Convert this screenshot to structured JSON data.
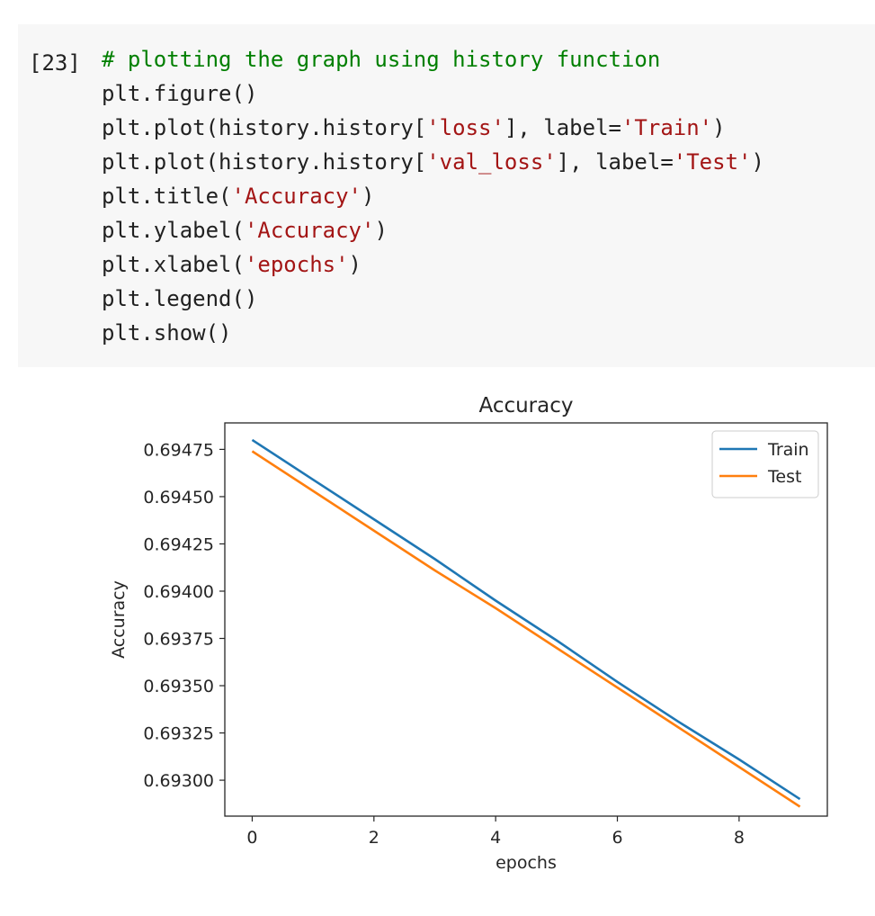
{
  "code_cell": {
    "execution_count": "[23]",
    "lines": [
      [
        {
          "t": "# plotting the graph using history function",
          "k": "comment"
        }
      ],
      [
        {
          "t": "plt.figure()",
          "k": "plain"
        }
      ],
      [
        {
          "t": "plt.plot(history.history[",
          "k": "plain"
        },
        {
          "t": "'loss'",
          "k": "string"
        },
        {
          "t": "], label=",
          "k": "plain"
        },
        {
          "t": "'Train'",
          "k": "string"
        },
        {
          "t": ")",
          "k": "plain"
        }
      ],
      [
        {
          "t": "plt.plot(history.history[",
          "k": "plain"
        },
        {
          "t": "'val_loss'",
          "k": "string"
        },
        {
          "t": "], label=",
          "k": "plain"
        },
        {
          "t": "'Test'",
          "k": "string"
        },
        {
          "t": ")",
          "k": "plain"
        }
      ],
      [
        {
          "t": "plt.title(",
          "k": "plain"
        },
        {
          "t": "'Accuracy'",
          "k": "string"
        },
        {
          "t": ")",
          "k": "plain"
        }
      ],
      [
        {
          "t": "plt.ylabel(",
          "k": "plain"
        },
        {
          "t": "'Accuracy'",
          "k": "string"
        },
        {
          "t": ")",
          "k": "plain"
        }
      ],
      [
        {
          "t": "plt.xlabel(",
          "k": "plain"
        },
        {
          "t": "'epochs'",
          "k": "string"
        },
        {
          "t": ")",
          "k": "plain"
        }
      ],
      [
        {
          "t": "plt.legend()",
          "k": "plain"
        }
      ],
      [
        {
          "t": "plt.show()",
          "k": "plain"
        }
      ]
    ]
  },
  "chart_data": {
    "type": "line",
    "title": "Accuracy",
    "xlabel": "epochs",
    "ylabel": "Accuracy",
    "x": [
      0,
      1,
      2,
      3,
      4,
      5,
      6,
      7,
      8,
      9
    ],
    "xlim": [
      -0.45,
      9.45
    ],
    "ylim": [
      0.69281,
      0.69489
    ],
    "xticks": [
      0,
      2,
      4,
      6,
      8
    ],
    "yticks": [
      0.693,
      0.69325,
      0.6935,
      0.69375,
      0.694,
      0.69425,
      0.6945,
      0.69475
    ],
    "ytick_labels": [
      "0.69300",
      "0.69325",
      "0.69350",
      "0.69375",
      "0.69400",
      "0.69425",
      "0.69450",
      "0.69475"
    ],
    "grid": false,
    "legend_position": "top-right",
    "series": [
      {
        "name": "Train",
        "color": "#1f77b4",
        "values": [
          0.6948,
          0.69459,
          0.69438,
          0.69417,
          0.69395,
          0.69374,
          0.69352,
          0.69331,
          0.69311,
          0.6929
        ]
      },
      {
        "name": "Test",
        "color": "#ff7f0e",
        "values": [
          0.69474,
          0.69453,
          0.69432,
          0.69411,
          0.69391,
          0.6937,
          0.69349,
          0.69328,
          0.69307,
          0.69286
        ]
      }
    ]
  }
}
